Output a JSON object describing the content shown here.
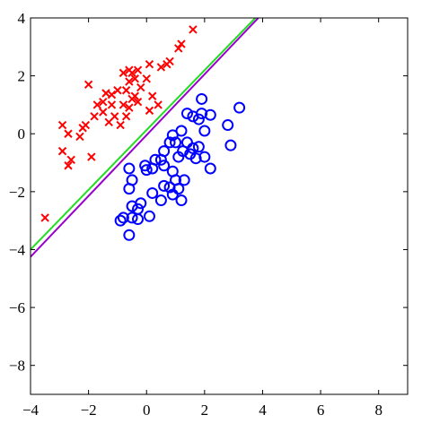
{
  "chart_data": {
    "type": "scatter",
    "title": "",
    "xlabel": "",
    "ylabel": "",
    "xlim": [
      -4,
      9
    ],
    "ylim": [
      -9,
      4
    ],
    "xticks": [
      -4,
      -2,
      0,
      2,
      4,
      6,
      8
    ],
    "yticks": [
      -8,
      -6,
      -4,
      -2,
      0,
      2,
      4
    ],
    "xtick_labels": [
      "−4",
      "−2",
      "0",
      "2",
      "4",
      "6",
      "8"
    ],
    "ytick_labels": [
      "−8",
      "−6",
      "−4",
      "−2",
      "0",
      "2",
      "4"
    ],
    "grid": false,
    "legend": false,
    "series": [
      {
        "marker": "x",
        "color": "#ff0000",
        "points": [
          [
            1.6,
            3.6
          ],
          [
            1.2,
            3.1
          ],
          [
            1.1,
            2.95
          ],
          [
            0.8,
            2.5
          ],
          [
            0.7,
            2.4
          ],
          [
            0.5,
            2.3
          ],
          [
            0.1,
            2.4
          ],
          [
            -0.3,
            2.2
          ],
          [
            -0.5,
            2.1
          ],
          [
            -0.6,
            2.2
          ],
          [
            -0.8,
            2.1
          ],
          [
            -0.4,
            1.9
          ],
          [
            -0.6,
            1.8
          ],
          [
            -0.2,
            1.6
          ],
          [
            0.0,
            1.9
          ],
          [
            -1.0,
            1.5
          ],
          [
            -1.2,
            1.35
          ],
          [
            -0.7,
            1.5
          ],
          [
            -0.4,
            1.3
          ],
          [
            -0.3,
            1.1
          ],
          [
            -0.5,
            1.2
          ],
          [
            -0.8,
            1.0
          ],
          [
            -0.6,
            0.9
          ],
          [
            0.2,
            1.3
          ],
          [
            0.4,
            1.0
          ],
          [
            0.1,
            0.8
          ],
          [
            -1.4,
            1.4
          ],
          [
            -1.5,
            1.1
          ],
          [
            -1.2,
            1.0
          ],
          [
            -1.7,
            1.0
          ],
          [
            -1.5,
            0.75
          ],
          [
            -1.8,
            0.6
          ],
          [
            -1.1,
            0.6
          ],
          [
            -0.7,
            0.6
          ],
          [
            -1.3,
            0.4
          ],
          [
            -0.9,
            0.3
          ],
          [
            -2.1,
            0.3
          ],
          [
            -2.2,
            0.2
          ],
          [
            -2.0,
            1.7
          ],
          [
            -2.9,
            0.3
          ],
          [
            -2.3,
            -0.1
          ],
          [
            -2.7,
            0.0
          ],
          [
            -2.9,
            -0.6
          ],
          [
            -2.6,
            -0.9
          ],
          [
            -2.7,
            -1.1
          ],
          [
            -1.9,
            -0.8
          ],
          [
            -3.5,
            -2.9
          ]
        ]
      },
      {
        "marker": "o",
        "color": "#0000ff",
        "points": [
          [
            3.2,
            0.9
          ],
          [
            2.8,
            0.3
          ],
          [
            2.2,
            0.65
          ],
          [
            1.9,
            0.7
          ],
          [
            1.4,
            0.7
          ],
          [
            1.9,
            1.2
          ],
          [
            1.8,
            0.5
          ],
          [
            2.0,
            0.1
          ],
          [
            1.6,
            0.6
          ],
          [
            2.9,
            -0.4
          ],
          [
            1.2,
            0.1
          ],
          [
            0.9,
            -0.05
          ],
          [
            1.0,
            -0.3
          ],
          [
            1.4,
            -0.3
          ],
          [
            1.6,
            -0.5
          ],
          [
            1.8,
            -0.45
          ],
          [
            1.25,
            -0.6
          ],
          [
            1.5,
            -0.7
          ],
          [
            1.7,
            -0.85
          ],
          [
            2.0,
            -0.8
          ],
          [
            2.2,
            -1.2
          ],
          [
            1.1,
            -0.8
          ],
          [
            0.8,
            -0.3
          ],
          [
            0.6,
            -0.6
          ],
          [
            0.5,
            -0.9
          ],
          [
            0.3,
            -0.9
          ],
          [
            0.6,
            -1.1
          ],
          [
            0.2,
            -1.2
          ],
          [
            0.0,
            -1.25
          ],
          [
            -0.6,
            -1.2
          ],
          [
            -0.05,
            -1.1
          ],
          [
            0.9,
            -1.3
          ],
          [
            1.0,
            -1.6
          ],
          [
            1.3,
            -1.6
          ],
          [
            0.8,
            -1.85
          ],
          [
            0.6,
            -1.8
          ],
          [
            1.1,
            -1.9
          ],
          [
            0.9,
            -2.1
          ],
          [
            1.2,
            -2.3
          ],
          [
            0.5,
            -2.3
          ],
          [
            -0.5,
            -1.6
          ],
          [
            -0.6,
            -1.9
          ],
          [
            -0.2,
            -2.4
          ],
          [
            -0.3,
            -2.6
          ],
          [
            -0.5,
            -2.5
          ],
          [
            -0.8,
            -2.9
          ],
          [
            -0.9,
            -3.0
          ],
          [
            -0.5,
            -2.9
          ],
          [
            -0.3,
            -2.95
          ],
          [
            0.1,
            -2.85
          ],
          [
            -0.6,
            -3.5
          ],
          [
            0.2,
            -2.05
          ]
        ]
      }
    ],
    "lines": [
      {
        "color": "#9900cc",
        "from": [
          -4,
          -4.25
        ],
        "to": [
          3.85,
          4.0
        ]
      },
      {
        "color": "#22dd22",
        "from": [
          -4,
          -4.0
        ],
        "to": [
          3.75,
          4.0
        ]
      }
    ]
  }
}
